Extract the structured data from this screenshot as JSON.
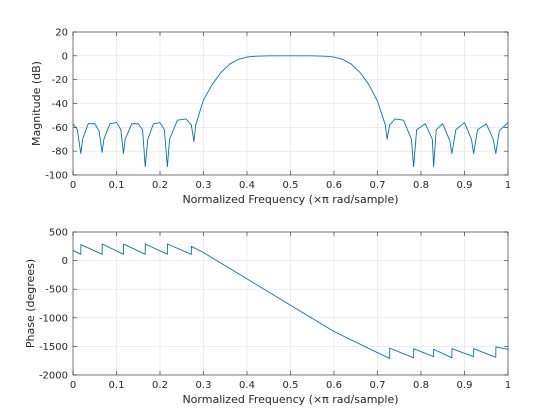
{
  "chart_data": [
    {
      "type": "line",
      "xlabel": "Normalized Frequency  (×π rad/sample)",
      "ylabel": "Magnitude (dB)",
      "xlim": [
        0,
        1
      ],
      "ylim": [
        -100,
        20
      ],
      "xticks": [
        "0",
        "0.1",
        "0.2",
        "0.3",
        "0.4",
        "0.5",
        "0.6",
        "0.7",
        "0.8",
        "0.9",
        "1"
      ],
      "yticks": [
        "-100",
        "-80",
        "-60",
        "-40",
        "-20",
        "0",
        "20"
      ],
      "grid": true,
      "line_color": "#0072bd",
      "series": [
        {
          "x": [
            0,
            0.01,
            0.018,
            0.022,
            0.035,
            0.05,
            0.06,
            0.067,
            0.071,
            0.085,
            0.1,
            0.11,
            0.116,
            0.12,
            0.135,
            0.15,
            0.16,
            0.166,
            0.172,
            0.185,
            0.2,
            0.21,
            0.217,
            0.222,
            0.24,
            0.26,
            0.272,
            0.278,
            0.282,
            0.3,
            0.32,
            0.34,
            0.36,
            0.38,
            0.4,
            0.42,
            0.45,
            0.5,
            0.55,
            0.58,
            0.6,
            0.62,
            0.64,
            0.66,
            0.68,
            0.7,
            0.718,
            0.722,
            0.728,
            0.74,
            0.76,
            0.778,
            0.783,
            0.79,
            0.81,
            0.826,
            0.829,
            0.835,
            0.85,
            0.866,
            0.871,
            0.88,
            0.9,
            0.916,
            0.921,
            0.93,
            0.95,
            0.966,
            0.972,
            0.98,
            1
          ],
          "y": [
            -57,
            -62,
            -82,
            -70,
            -57,
            -57,
            -63,
            -81,
            -70,
            -57,
            -56,
            -62,
            -82,
            -70,
            -57,
            -57,
            -62,
            -93,
            -70,
            -57,
            -56,
            -62,
            -93,
            -70,
            -54,
            -53,
            -58,
            -72,
            -58,
            -37,
            -24,
            -14,
            -7,
            -3,
            -1,
            -0.3,
            0,
            0,
            0,
            -0.3,
            -1,
            -3,
            -7,
            -14,
            -24,
            -38,
            -58,
            -70,
            -58,
            -53,
            -54,
            -70,
            -93,
            -62,
            -57,
            -70,
            -93,
            -62,
            -57,
            -71,
            -82,
            -62,
            -56,
            -70,
            -82,
            -62,
            -57,
            -70,
            -82,
            -63,
            -56
          ]
        }
      ]
    },
    {
      "type": "line",
      "xlabel": "Normalized Frequency  (×π rad/sample)",
      "ylabel": "Phase (degrees)",
      "xlim": [
        0,
        1
      ],
      "ylim": [
        -2000,
        500
      ],
      "xticks": [
        "0",
        "0.1",
        "0.2",
        "0.3",
        "0.4",
        "0.5",
        "0.6",
        "0.7",
        "0.8",
        "0.9",
        "1"
      ],
      "yticks": [
        "-2000",
        "-1500",
        "-1000",
        "-500",
        "0",
        "500"
      ],
      "grid": true,
      "line_color": "#0072bd",
      "series": [
        {
          "x": [
            0,
            0.018,
            0.0181,
            0.067,
            0.0671,
            0.116,
            0.1161,
            0.166,
            0.1661,
            0.217,
            0.2171,
            0.272,
            0.2721,
            0.3,
            0.4,
            0.5,
            0.6,
            0.7,
            0.728,
            0.7281,
            0.783,
            0.7831,
            0.829,
            0.8291,
            0.871,
            0.8711,
            0.921,
            0.9211,
            0.972,
            0.9721,
            1
          ],
          "y": [
            180,
            110,
            280,
            110,
            290,
            110,
            290,
            110,
            290,
            110,
            290,
            110,
            250,
            140,
            -320,
            -780,
            -1240,
            -1610,
            -1710,
            -1530,
            -1700,
            -1540,
            -1680,
            -1550,
            -1700,
            -1540,
            -1680,
            -1540,
            -1690,
            -1510,
            -1550
          ]
        }
      ]
    }
  ]
}
